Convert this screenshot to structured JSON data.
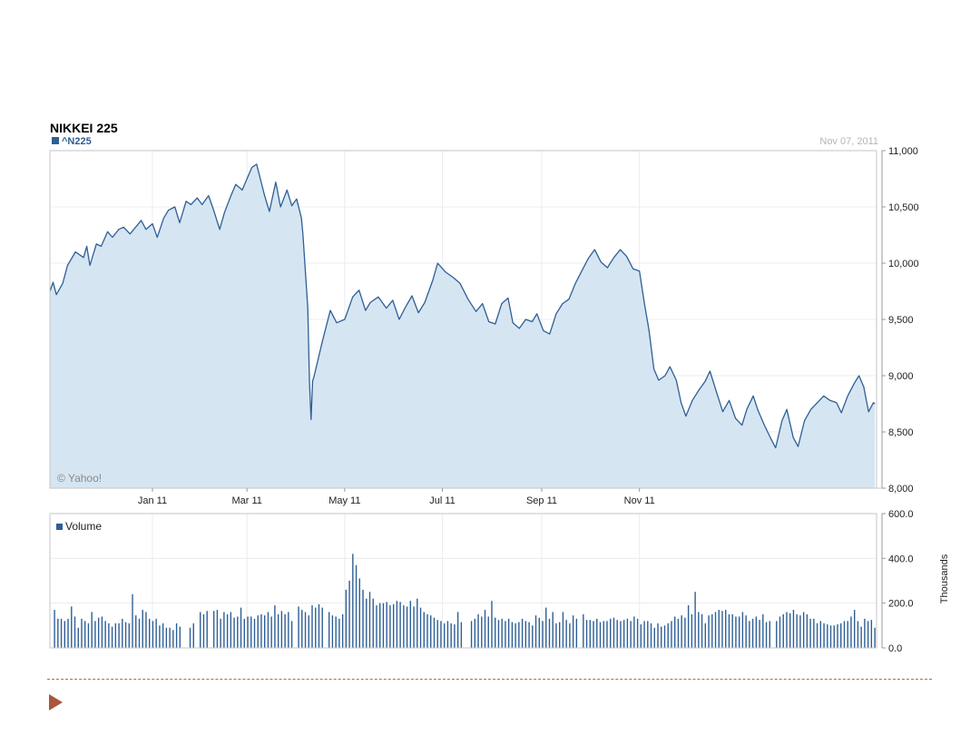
{
  "chart_data": [
    {
      "type": "area",
      "title": "NIKKEI 225",
      "date_label": "Nov 07, 2011",
      "series": [
        {
          "name": "^N225",
          "color": "#2e5f95",
          "fill": "#d6e5f2",
          "points": [
            [
              "2010-11-08",
              9750
            ],
            [
              "2010-11-10",
              9830
            ],
            [
              "2010-11-12",
              9720
            ],
            [
              "2010-11-16",
              9820
            ],
            [
              "2010-11-19",
              9980
            ],
            [
              "2010-11-24",
              10100
            ],
            [
              "2010-11-29",
              10050
            ],
            [
              "2010-12-01",
              10150
            ],
            [
              "2010-12-03",
              9980
            ],
            [
              "2010-12-07",
              10170
            ],
            [
              "2010-12-10",
              10150
            ],
            [
              "2010-12-14",
              10280
            ],
            [
              "2010-12-17",
              10230
            ],
            [
              "2010-12-21",
              10300
            ],
            [
              "2010-12-24",
              10320
            ],
            [
              "2010-12-28",
              10260
            ],
            [
              "2011-01-04",
              10380
            ],
            [
              "2011-01-07",
              10300
            ],
            [
              "2011-01-11",
              10350
            ],
            [
              "2011-01-14",
              10230
            ],
            [
              "2011-01-18",
              10400
            ],
            [
              "2011-01-21",
              10470
            ],
            [
              "2011-01-25",
              10500
            ],
            [
              "2011-01-28",
              10360
            ],
            [
              "2011-02-01",
              10550
            ],
            [
              "2011-02-04",
              10520
            ],
            [
              "2011-02-08",
              10580
            ],
            [
              "2011-02-11",
              10520
            ],
            [
              "2011-02-15",
              10600
            ],
            [
              "2011-02-18",
              10480
            ],
            [
              "2011-02-22",
              10300
            ],
            [
              "2011-02-25",
              10450
            ],
            [
              "2011-03-01",
              10600
            ],
            [
              "2011-03-04",
              10700
            ],
            [
              "2011-03-08",
              10650
            ],
            [
              "2011-03-11",
              10750
            ],
            [
              "2011-03-14",
              10850
            ],
            [
              "2011-03-17",
              10880
            ],
            [
              "2011-03-22",
              10600
            ],
            [
              "2011-03-25",
              10460
            ],
            [
              "2011-03-29",
              10720
            ],
            [
              "2011-04-01",
              10500
            ],
            [
              "2011-04-05",
              10650
            ],
            [
              "2011-04-08",
              10510
            ],
            [
              "2011-04-11",
              10570
            ],
            [
              "2011-04-14",
              10400
            ],
            [
              "2011-04-15",
              10250
            ],
            [
              "2011-04-18",
              9600
            ],
            [
              "2011-04-19",
              8960
            ],
            [
              "2011-04-20",
              8610
            ],
            [
              "2011-04-21",
              8950
            ],
            [
              "2011-04-22",
              9000
            ],
            [
              "2011-04-27",
              9300
            ],
            [
              "2011-05-02",
              9580
            ],
            [
              "2011-05-06",
              9470
            ],
            [
              "2011-05-11",
              9500
            ],
            [
              "2011-05-16",
              9700
            ],
            [
              "2011-05-20",
              9760
            ],
            [
              "2011-05-24",
              9580
            ],
            [
              "2011-05-27",
              9650
            ],
            [
              "2011-06-01",
              9700
            ],
            [
              "2011-06-06",
              9600
            ],
            [
              "2011-06-10",
              9670
            ],
            [
              "2011-06-14",
              9500
            ],
            [
              "2011-06-18",
              9610
            ],
            [
              "2011-06-22",
              9710
            ],
            [
              "2011-06-26",
              9560
            ],
            [
              "2011-06-30",
              9650
            ],
            [
              "2011-07-05",
              9850
            ],
            [
              "2011-07-08",
              10000
            ],
            [
              "2011-07-13",
              9920
            ],
            [
              "2011-07-18",
              9870
            ],
            [
              "2011-07-22",
              9820
            ],
            [
              "2011-07-27",
              9680
            ],
            [
              "2011-08-01",
              9570
            ],
            [
              "2011-08-05",
              9640
            ],
            [
              "2011-08-09",
              9480
            ],
            [
              "2011-08-13",
              9460
            ],
            [
              "2011-08-17",
              9640
            ],
            [
              "2011-08-21",
              9690
            ],
            [
              "2011-08-24",
              9470
            ],
            [
              "2011-08-28",
              9420
            ],
            [
              "2011-09-01",
              9500
            ],
            [
              "2011-09-05",
              9480
            ],
            [
              "2011-09-08",
              9550
            ],
            [
              "2011-09-12",
              9400
            ],
            [
              "2011-09-16",
              9370
            ],
            [
              "2011-09-20",
              9550
            ],
            [
              "2011-09-24",
              9640
            ],
            [
              "2011-09-28",
              9680
            ],
            [
              "2011-10-02",
              9820
            ],
            [
              "2011-10-06",
              9930
            ],
            [
              "2011-10-10",
              10040
            ],
            [
              "2011-10-14",
              10120
            ],
            [
              "2011-10-18",
              10010
            ],
            [
              "2011-10-22",
              9960
            ],
            [
              "2011-10-26",
              10050
            ],
            [
              "2011-10-30",
              10120
            ],
            [
              "2011-11-03",
              10060
            ],
            [
              "2011-11-07",
              9950
            ],
            [
              "2011-11-11",
              9930
            ],
            [
              "2011-11-14",
              9650
            ],
            [
              "2011-11-17",
              9400
            ],
            [
              "2011-11-20",
              9060
            ],
            [
              "2011-11-23",
              8960
            ],
            [
              "2011-11-27",
              9000
            ],
            [
              "2011-11-30",
              9080
            ],
            [
              "2011-12-04",
              8960
            ],
            [
              "2011-12-07",
              8760
            ],
            [
              "2011-12-10",
              8640
            ],
            [
              "2011-12-14",
              8780
            ],
            [
              "2011-12-18",
              8870
            ],
            [
              "2011-12-22",
              8950
            ],
            [
              "2011-12-25",
              9040
            ],
            [
              "2011-12-29",
              8860
            ],
            [
              "2012-01-02",
              8680
            ],
            [
              "2012-01-06",
              8780
            ],
            [
              "2012-01-10",
              8620
            ],
            [
              "2012-01-14",
              8560
            ],
            [
              "2012-01-17",
              8700
            ],
            [
              "2012-01-21",
              8820
            ],
            [
              "2012-01-24",
              8690
            ],
            [
              "2012-01-28",
              8560
            ],
            [
              "2012-02-01",
              8440
            ],
            [
              "2012-02-04",
              8360
            ],
            [
              "2012-02-08",
              8600
            ],
            [
              "2012-02-11",
              8700
            ],
            [
              "2012-02-15",
              8450
            ],
            [
              "2012-02-18",
              8370
            ],
            [
              "2012-02-22",
              8600
            ],
            [
              "2012-02-26",
              8700
            ],
            [
              "2012-03-01",
              8760
            ],
            [
              "2012-03-05",
              8820
            ],
            [
              "2012-03-09",
              8780
            ],
            [
              "2012-03-13",
              8760
            ],
            [
              "2012-03-16",
              8670
            ],
            [
              "2012-03-20",
              8820
            ],
            [
              "2012-03-24",
              8930
            ],
            [
              "2012-03-27",
              9000
            ],
            [
              "2012-03-30",
              8900
            ],
            [
              "2012-04-02",
              8680
            ],
            [
              "2012-04-05",
              8760
            ],
            [
              "2012-04-06",
              8750
            ]
          ]
        }
      ],
      "x_ticks": [
        {
          "date": "2011-01-11",
          "label": "Jan 11"
        },
        {
          "date": "2011-03-11",
          "label": "Mar 11"
        },
        {
          "date": "2011-05-11",
          "label": "May 11"
        },
        {
          "date": "2011-07-11",
          "label": "Jul 11"
        },
        {
          "date": "2011-09-11",
          "label": "Sep 11"
        },
        {
          "date": "2011-11-11",
          "label": "Nov 11"
        }
      ],
      "y_ticks": [
        8000,
        8500,
        9000,
        9500,
        10000,
        10500,
        11000
      ],
      "y_tick_labels": [
        "8,000",
        "8,500",
        "9,000",
        "9,500",
        "10,000",
        "10,500",
        "11,000"
      ],
      "xlim": [
        "2010-11-08",
        "2012-04-07"
      ],
      "ylim": [
        8000,
        11000
      ],
      "grid": true,
      "watermark": "© Yahoo!"
    },
    {
      "type": "bar",
      "series": [
        {
          "name": "Volume",
          "color": "#2e5f95"
        }
      ],
      "ylabel": "Thousands",
      "y_ticks": [
        0,
        200,
        400,
        600
      ],
      "y_tick_labels": [
        "0.0",
        "200.0",
        "400.0",
        "600.0"
      ],
      "ylim": [
        0,
        600
      ],
      "grid": true,
      "values": [
        170,
        130,
        130,
        120,
        130,
        185,
        140,
        90,
        130,
        120,
        110,
        160,
        120,
        135,
        140,
        120,
        110,
        95,
        110,
        110,
        130,
        115,
        110,
        240,
        145,
        130,
        170,
        160,
        130,
        120,
        130,
        100,
        110,
        90,
        90,
        80,
        110,
        95,
        0,
        0,
        90,
        110,
        0,
        160,
        150,
        165,
        0,
        165,
        170,
        130,
        160,
        150,
        160,
        135,
        140,
        180,
        130,
        140,
        140,
        130,
        145,
        150,
        145,
        160,
        140,
        190,
        150,
        165,
        150,
        160,
        120,
        0,
        185,
        170,
        160,
        145,
        190,
        180,
        195,
        180,
        0,
        160,
        145,
        140,
        130,
        150,
        260,
        300,
        420,
        370,
        310,
        260,
        220,
        250,
        220,
        190,
        200,
        200,
        205,
        190,
        195,
        210,
        205,
        190,
        185,
        210,
        185,
        220,
        180,
        160,
        150,
        145,
        135,
        125,
        120,
        110,
        120,
        110,
        105,
        160,
        115,
        0,
        0,
        120,
        130,
        150,
        140,
        170,
        140,
        210,
        135,
        125,
        130,
        120,
        130,
        115,
        110,
        115,
        130,
        120,
        115,
        100,
        145,
        135,
        120,
        180,
        130,
        160,
        110,
        115,
        160,
        125,
        110,
        145,
        130,
        0,
        150,
        125,
        125,
        120,
        130,
        115,
        120,
        120,
        130,
        135,
        125,
        120,
        125,
        130,
        120,
        140,
        130,
        105,
        120,
        120,
        110,
        90,
        110,
        95,
        100,
        110,
        120,
        140,
        130,
        145,
        135,
        190,
        150,
        250,
        160,
        150,
        110,
        145,
        150,
        160,
        170,
        165,
        170,
        150,
        150,
        140,
        140,
        160,
        145,
        120,
        130,
        140,
        125,
        150,
        115,
        120,
        0,
        120,
        140,
        150,
        160,
        155,
        170,
        150,
        145,
        160,
        150,
        130,
        130,
        110,
        120,
        110,
        105,
        100,
        100,
        105,
        110,
        120,
        120,
        140,
        170,
        120,
        95,
        130,
        120,
        125,
        90
      ]
    }
  ]
}
